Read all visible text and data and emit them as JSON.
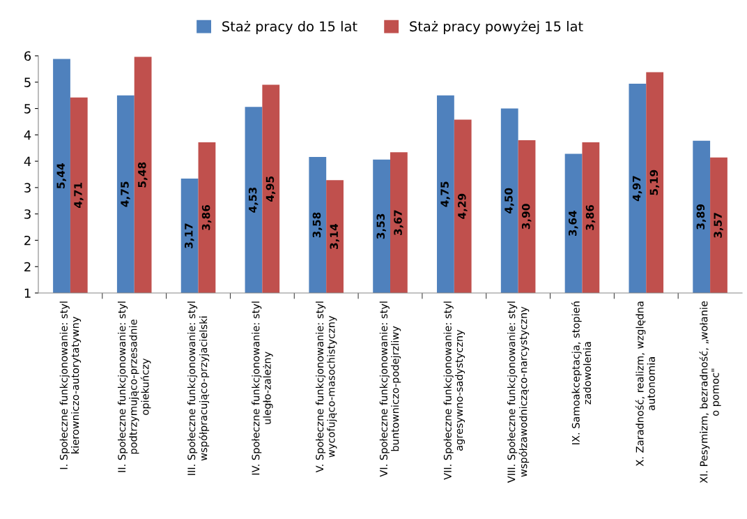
{
  "chart_data": {
    "type": "bar",
    "categories": [
      "I. Społeczne funkcjonowanie: styl\nkierowniczo-autorytatywny",
      "II. Społeczne funkcjonowanie: styl\npodtrzymująco-przesadnie\nopiekuńczy",
      "III. Społeczne funkcjonowanie: styl\nwspółpracująco-przyjacielski",
      "IV. Społeczne funkcjonowanie: styl\nuległo-zależny",
      "V. Społeczne funkcjonowanie: styl\nwycofująco-masochistyczny",
      "VI. Społeczne funkcjonowanie: styl\nbuntowniczo-podejrzliwy",
      "VII. Społeczne funkcjonowanie: styl\nagresywno-sadystyczny",
      "VIII. Społeczne funkcjonowanie: styl\nwspółzawodnicząco-narcystyczny",
      "IX. Samoakceptacja, stopień\nzadowolenia",
      "X. Zaradność, realizm, względna\nautonomia",
      "XI. Pesymizm, bezradność, „wołanie\no pomoc\""
    ],
    "series": [
      {
        "name": "Staż pracy do 15 lat",
        "color": "#4f81bd",
        "values": [
          5.44,
          4.75,
          3.17,
          4.53,
          3.58,
          3.53,
          4.75,
          4.5,
          3.64,
          4.97,
          3.89
        ],
        "value_labels": [
          "5,44",
          "4,75",
          "3,17",
          "4,53",
          "3,58",
          "3,53",
          "4,75",
          "4,50",
          "3,64",
          "4,97",
          "3,89"
        ]
      },
      {
        "name": "Staż pracy powyżej 15 lat",
        "color": "#c0504d",
        "values": [
          4.71,
          5.48,
          3.86,
          4.95,
          3.14,
          3.67,
          4.29,
          3.9,
          3.86,
          5.19,
          3.57
        ],
        "value_labels": [
          "4,71",
          "5,48",
          "3,86",
          "4,95",
          "3,14",
          "3,67",
          "4,29",
          "3,90",
          "3,86",
          "5,19",
          "3,57"
        ]
      }
    ],
    "ylim": [
      1,
      5.5
    ],
    "yticks": [
      1,
      {
        "value": 1.5,
        "label": "2"
      },
      2,
      {
        "value": 2.5,
        "label": "3"
      },
      3,
      {
        "value": 3.5,
        "label": "4"
      },
      4,
      {
        "value": 4.5,
        "label": "5"
      },
      5,
      {
        "value": 5.5,
        "label": "6"
      }
    ],
    "grid": false,
    "legend": "top"
  }
}
